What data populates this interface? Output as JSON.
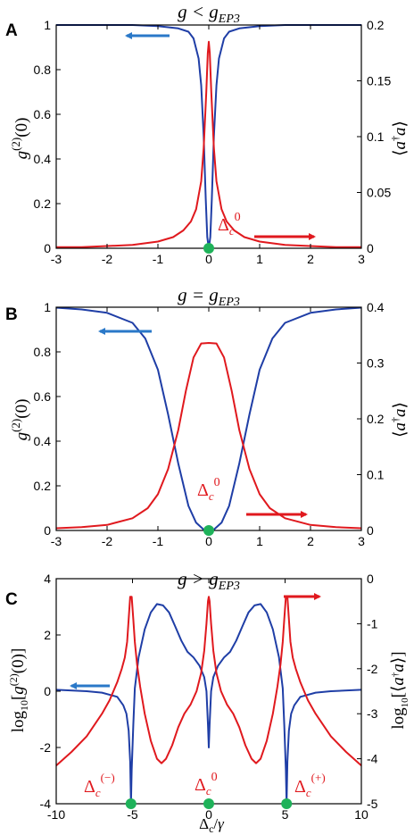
{
  "colors": {
    "blue": "#1f3ea6",
    "red": "#e0191e",
    "arrow_blue": "#2a78c8",
    "arrow_red": "#e0191e",
    "dot": "#1fb25a"
  },
  "chart_data": [
    {
      "type": "line",
      "panel_label": "A",
      "title": "g < g_EP3",
      "ylabel_left": "g^(2)(0)",
      "ylabel_right": "⟨a†a⟩",
      "xlim": [
        -3,
        3
      ],
      "ylim_left": [
        0,
        1
      ],
      "ylim_right": [
        0,
        0.2
      ],
      "xticks": [
        "-3",
        "-2",
        "-1",
        "0",
        "1",
        "2",
        "3"
      ],
      "yticks_left": [
        "0",
        "0.2",
        "0.4",
        "0.6",
        "0.8",
        "1"
      ],
      "yticks_right": [
        "0",
        "0.05",
        "0.1",
        "0.15",
        "0.2"
      ],
      "annotation": "Δc0",
      "series": [
        {
          "axis": "left",
          "color": "blue",
          "x": [
            -3,
            -2,
            -1.5,
            -1,
            -0.6,
            -0.4,
            -0.3,
            -0.2,
            -0.15,
            -0.1,
            -0.06,
            -0.03,
            0,
            0.03,
            0.06,
            0.1,
            0.15,
            0.2,
            0.3,
            0.4,
            0.6,
            1,
            1.5,
            2,
            3
          ],
          "y": [
            1,
            1,
            1,
            0.995,
            0.985,
            0.97,
            0.94,
            0.85,
            0.73,
            0.5,
            0.22,
            0.05,
            0,
            0.05,
            0.22,
            0.5,
            0.73,
            0.85,
            0.94,
            0.97,
            0.985,
            0.995,
            1,
            1,
            1
          ]
        },
        {
          "axis": "right",
          "color": "red",
          "x": [
            -3,
            -2.5,
            -2,
            -1.5,
            -1,
            -0.7,
            -0.5,
            -0.35,
            -0.25,
            -0.15,
            -0.1,
            -0.05,
            -0.02,
            0,
            0.02,
            0.05,
            0.1,
            0.15,
            0.25,
            0.35,
            0.5,
            0.7,
            1,
            1.5,
            2,
            2.5,
            3
          ],
          "y": [
            0.001,
            0.001,
            0.002,
            0.003,
            0.006,
            0.01,
            0.016,
            0.024,
            0.035,
            0.06,
            0.09,
            0.14,
            0.175,
            0.185,
            0.175,
            0.14,
            0.09,
            0.06,
            0.035,
            0.024,
            0.016,
            0.01,
            0.006,
            0.003,
            0.002,
            0.001,
            0.001
          ]
        }
      ],
      "markers_x": [
        0
      ]
    },
    {
      "type": "line",
      "panel_label": "B",
      "title": "g = g_EP3",
      "ylabel_left": "g^(2)(0)",
      "ylabel_right": "⟨a†a⟩",
      "xlim": [
        -3,
        3
      ],
      "ylim_left": [
        0,
        1
      ],
      "ylim_right": [
        0,
        0.4
      ],
      "xticks": [
        "-3",
        "-2",
        "-1",
        "0",
        "1",
        "2",
        "3"
      ],
      "yticks_left": [
        "0",
        "0.2",
        "0.4",
        "0.6",
        "0.8",
        "1"
      ],
      "yticks_right": [
        "0",
        "0.1",
        "0.2",
        "0.3",
        "0.4"
      ],
      "annotation": "Δc0",
      "series": [
        {
          "axis": "left",
          "color": "blue",
          "x": [
            -3,
            -2.5,
            -2,
            -1.5,
            -1.25,
            -1,
            -0.8,
            -0.6,
            -0.4,
            -0.25,
            -0.1,
            0,
            0.1,
            0.25,
            0.4,
            0.6,
            0.8,
            1,
            1.25,
            1.5,
            2,
            2.5,
            3
          ],
          "y": [
            0.998,
            0.99,
            0.975,
            0.93,
            0.86,
            0.72,
            0.52,
            0.3,
            0.11,
            0.035,
            0.004,
            0,
            0.004,
            0.035,
            0.11,
            0.3,
            0.52,
            0.72,
            0.86,
            0.93,
            0.975,
            0.99,
            0.998
          ]
        },
        {
          "axis": "right",
          "color": "red",
          "x": [
            -3,
            -2.5,
            -2,
            -1.5,
            -1.2,
            -1,
            -0.8,
            -0.6,
            -0.45,
            -0.3,
            -0.15,
            0,
            0.15,
            0.3,
            0.45,
            0.6,
            0.8,
            1,
            1.2,
            1.5,
            2,
            2.5,
            3
          ],
          "y": [
            0.004,
            0.006,
            0.01,
            0.022,
            0.04,
            0.065,
            0.11,
            0.18,
            0.25,
            0.31,
            0.335,
            0.336,
            0.335,
            0.31,
            0.25,
            0.18,
            0.11,
            0.065,
            0.04,
            0.022,
            0.01,
            0.006,
            0.004
          ]
        }
      ],
      "markers_x": [
        0
      ]
    },
    {
      "type": "line",
      "panel_label": "C",
      "title": "g > g_EP3",
      "xlabel": "Δc/γ",
      "ylabel_left": "log10[g^(2)(0)]",
      "ylabel_right": "log10[⟨a†a⟩]",
      "xlim": [
        -10,
        10
      ],
      "ylim_left": [
        -4,
        4
      ],
      "ylim_right": [
        -5,
        0
      ],
      "xticks": [
        "-10",
        "-5",
        "0",
        "5",
        "10"
      ],
      "yticks_left": [
        "-4",
        "-2",
        "0",
        "2",
        "4"
      ],
      "yticks_right": [
        "-5",
        "-4",
        "-3",
        "-2",
        "-1",
        "0"
      ],
      "annotations": [
        "Δc(−)",
        "Δc0",
        "Δc(+)"
      ],
      "series": [
        {
          "axis": "left",
          "color": "blue",
          "x": [
            -10,
            -8,
            -7,
            -6,
            -5.6,
            -5.4,
            -5.25,
            -5.15,
            -5.1,
            -5.05,
            -4.95,
            -4.85,
            -4.6,
            -4.2,
            -3.8,
            -3.4,
            -3,
            -2.6,
            -2.2,
            -1.8,
            -1.4,
            -1,
            -0.6,
            -0.3,
            -0.15,
            -0.05,
            0,
            0.05,
            0.15,
            0.3,
            0.6,
            1,
            1.4,
            1.8,
            2.2,
            2.6,
            3,
            3.4,
            3.8,
            4.2,
            4.6,
            4.85,
            4.95,
            5.05,
            5.1,
            5.15,
            5.25,
            5.4,
            5.6,
            6,
            7,
            8,
            10
          ],
          "y": [
            0.05,
            0,
            -0.05,
            -0.2,
            -0.5,
            -0.8,
            -1.4,
            -2.5,
            -4,
            -2.8,
            -1.2,
            0.1,
            1.2,
            2.2,
            2.8,
            3.1,
            3.05,
            2.8,
            2.3,
            1.8,
            1.4,
            1.2,
            0.9,
            0.5,
            0,
            -1.2,
            -2,
            -1.2,
            0,
            0.5,
            0.9,
            1.2,
            1.4,
            1.8,
            2.3,
            2.8,
            3.05,
            3.1,
            2.8,
            2.2,
            1.2,
            0.1,
            -1.2,
            -2.8,
            -4,
            -2.5,
            -1.4,
            -0.8,
            -0.5,
            -0.2,
            -0.05,
            0,
            0.05
          ]
        },
        {
          "axis": "right",
          "color": "red",
          "x": [
            -10,
            -9,
            -8,
            -7,
            -6.5,
            -6,
            -5.7,
            -5.5,
            -5.35,
            -5.25,
            -5.15,
            -5.05,
            -4.95,
            -4.85,
            -4.7,
            -4.5,
            -4.2,
            -3.8,
            -3.4,
            -3.1,
            -2.8,
            -2.4,
            -2,
            -1.6,
            -1.2,
            -0.8,
            -0.5,
            -0.3,
            -0.15,
            -0.05,
            0,
            0.05,
            0.15,
            0.3,
            0.5,
            0.8,
            1.2,
            1.6,
            2,
            2.4,
            2.8,
            3.1,
            3.4,
            3.8,
            4.2,
            4.5,
            4.7,
            4.85,
            4.95,
            5.05,
            5.15,
            5.25,
            5.35,
            5.5,
            5.7,
            6,
            6.5,
            7,
            8,
            9,
            10
          ],
          "y": [
            -4.15,
            -3.85,
            -3.5,
            -3,
            -2.7,
            -2.3,
            -2,
            -1.75,
            -1.4,
            -0.9,
            -0.4,
            -0.4,
            -0.9,
            -1.4,
            -1.9,
            -2.4,
            -3,
            -3.6,
            -4,
            -4.1,
            -4,
            -3.7,
            -3.3,
            -3,
            -2.8,
            -2.5,
            -2.1,
            -1.6,
            -1.0,
            -0.5,
            -0.4,
            -0.5,
            -1.0,
            -1.6,
            -2.1,
            -2.5,
            -2.8,
            -3,
            -3.3,
            -3.7,
            -4,
            -4.1,
            -4,
            -3.6,
            -3,
            -2.4,
            -1.9,
            -1.4,
            -0.9,
            -0.4,
            -0.4,
            -0.9,
            -1.4,
            -1.75,
            -2,
            -2.3,
            -2.7,
            -3,
            -3.5,
            -3.85,
            -4.15
          ]
        }
      ],
      "markers_x": [
        -5.1,
        0,
        5.1
      ]
    }
  ]
}
